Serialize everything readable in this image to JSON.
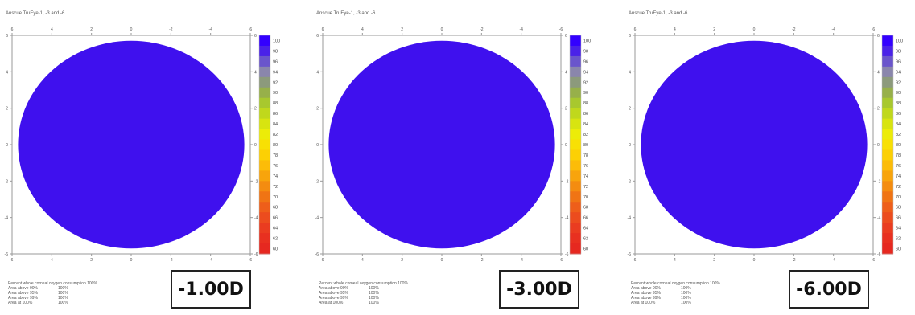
{
  "colors": {
    "disc": "#3f10ee",
    "frame": "#9a9a9a",
    "scale": [
      "#3300ff",
      "#4a22e8",
      "#6a55cc",
      "#8a86ac",
      "#8c9a7c",
      "#97b04a",
      "#a8c82e",
      "#c0d81c",
      "#d8e410",
      "#ecec08",
      "#f8e004",
      "#fcd004",
      "#fcbc08",
      "#f8a40c",
      "#f48c10",
      "#f07414",
      "#ee5e1a",
      "#ec4c1e",
      "#ea3c20",
      "#e83020",
      "#e62820"
    ]
  },
  "chart_data": [
    {
      "type": "heatmap",
      "title": "Anscue TruEye-1, -3 and -6",
      "x_ticks": [
        "6",
        "4",
        "2",
        "0",
        "-2",
        "-4",
        "-6"
      ],
      "y_ticks": [
        "6",
        "4",
        "2",
        "0",
        "-2",
        "-4",
        "-6"
      ],
      "xlim": [
        6,
        -6
      ],
      "ylim": [
        -6,
        6
      ],
      "scale_labels": [
        "100",
        "98",
        "96",
        "94",
        "92",
        "90",
        "88",
        "86",
        "84",
        "82",
        "80",
        "78",
        "76",
        "74",
        "72",
        "70",
        "68",
        "66",
        "64",
        "62",
        "60"
      ],
      "disc_radius": 5.7,
      "value_in_disc": 100,
      "stats": [
        {
          "label": "Percent whole corneal oxygen consumption 100%",
          "value": ""
        },
        {
          "label": "Area above 90%",
          "value": "100%"
        },
        {
          "label": "Area above 95%",
          "value": "100%"
        },
        {
          "label": "Area above 99%",
          "value": "100%"
        },
        {
          "label": "Area at 100%",
          "value": "100%"
        }
      ],
      "diopter": "-1.00D"
    },
    {
      "type": "heatmap",
      "title": "Anscue TruEye-1, -3 and -6",
      "x_ticks": [
        "6",
        "4",
        "2",
        "0",
        "-2",
        "-4",
        "-6"
      ],
      "y_ticks": [
        "6",
        "4",
        "2",
        "0",
        "-2",
        "-4",
        "-6"
      ],
      "xlim": [
        6,
        -6
      ],
      "ylim": [
        -6,
        6
      ],
      "scale_labels": [
        "100",
        "98",
        "96",
        "94",
        "92",
        "90",
        "88",
        "86",
        "84",
        "82",
        "80",
        "78",
        "76",
        "74",
        "72",
        "70",
        "68",
        "66",
        "64",
        "62",
        "60"
      ],
      "disc_radius": 5.7,
      "value_in_disc": 100,
      "stats": [
        {
          "label": "Percent whole corneal oxygen consumption 100%",
          "value": ""
        },
        {
          "label": "Area above 90%",
          "value": "100%"
        },
        {
          "label": "Area above 95%",
          "value": "100%"
        },
        {
          "label": "Area above 99%",
          "value": "100%"
        },
        {
          "label": "Area at 100%",
          "value": "100%"
        }
      ],
      "diopter": "-3.00D"
    },
    {
      "type": "heatmap",
      "title": "Anscue TruEye-1, -3 and -6",
      "x_ticks": [
        "6",
        "4",
        "2",
        "0",
        "-2",
        "-4",
        "-6"
      ],
      "y_ticks": [
        "6",
        "4",
        "2",
        "0",
        "-2",
        "-4",
        "-6"
      ],
      "xlim": [
        6,
        -6
      ],
      "ylim": [
        -6,
        6
      ],
      "scale_labels": [
        "100",
        "98",
        "96",
        "94",
        "92",
        "90",
        "88",
        "86",
        "84",
        "82",
        "80",
        "78",
        "76",
        "74",
        "72",
        "70",
        "68",
        "66",
        "64",
        "62",
        "60"
      ],
      "disc_radius": 5.7,
      "value_in_disc": 100,
      "stats": [
        {
          "label": "Percent whole corneal oxygen consumption 100%",
          "value": ""
        },
        {
          "label": "Area above 90%",
          "value": "100%"
        },
        {
          "label": "Area above 95%",
          "value": "100%"
        },
        {
          "label": "Area above 99%",
          "value": "100%"
        },
        {
          "label": "Area at 100%",
          "value": "100%"
        }
      ],
      "diopter": "-6.00D"
    }
  ]
}
